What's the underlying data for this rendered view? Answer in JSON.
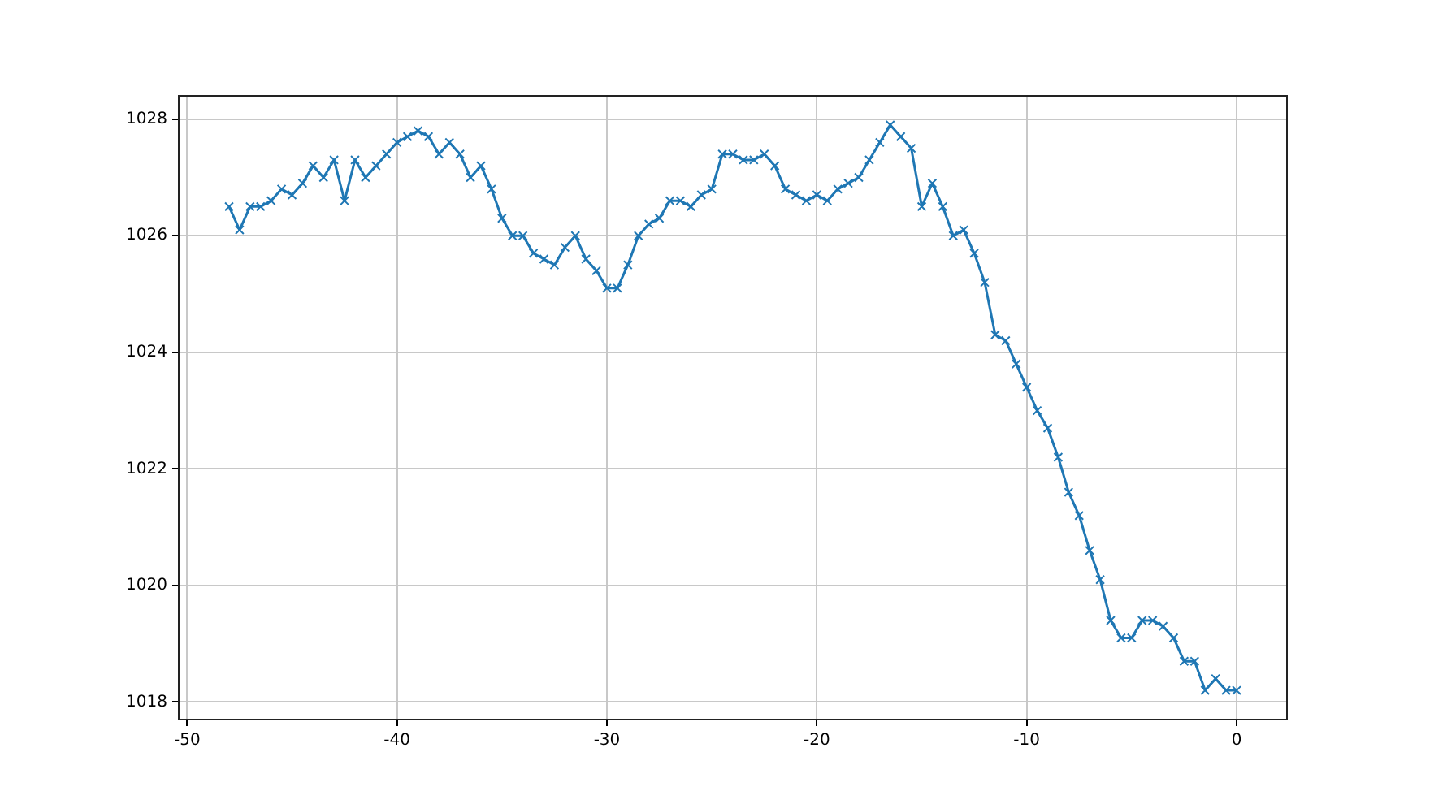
{
  "chart_data": {
    "type": "line",
    "marker": "cross",
    "grid": true,
    "color": "#1f77b4",
    "x": [
      -48,
      -47.5,
      -47,
      -46.5,
      -46,
      -45.5,
      -45,
      -44.5,
      -44,
      -43.5,
      -43,
      -42.5,
      -42,
      -41.5,
      -41,
      -40.5,
      -40,
      -39.5,
      -39,
      -38.5,
      -38,
      -37.5,
      -37,
      -36.5,
      -36,
      -35.5,
      -35,
      -34.5,
      -34,
      -33.5,
      -33,
      -32.5,
      -32,
      -31.5,
      -31,
      -30.5,
      -30,
      -29.5,
      -29,
      -28.5,
      -28,
      -27.5,
      -27,
      -26.5,
      -26,
      -25.5,
      -25,
      -24.5,
      -24,
      -23.5,
      -23,
      -22.5,
      -22,
      -21.5,
      -21,
      -20.5,
      -20,
      -19.5,
      -19,
      -18.5,
      -18,
      -17.5,
      -17,
      -16.5,
      -16,
      -15.5,
      -15,
      -14.5,
      -14,
      -13.5,
      -13,
      -12.5,
      -12,
      -11.5,
      -11,
      -10.5,
      -10,
      -9.5,
      -9,
      -8.5,
      -8,
      -7.5,
      -7,
      -6.5,
      -6,
      -5.5,
      -5,
      -4.5,
      -4,
      -3.5,
      -3,
      -2.5,
      -2,
      -1.5,
      -1,
      -0.5,
      0
    ],
    "values": [
      1026.5,
      1026.1,
      1026.5,
      1026.5,
      1026.6,
      1026.8,
      1026.7,
      1026.9,
      1027.2,
      1027.0,
      1027.3,
      1026.6,
      1027.3,
      1027.0,
      1027.2,
      1027.4,
      1027.6,
      1027.7,
      1027.8,
      1027.7,
      1027.4,
      1027.6,
      1027.4,
      1027.0,
      1027.2,
      1026.8,
      1026.3,
      1026.0,
      1026.0,
      1025.7,
      1025.6,
      1025.5,
      1025.8,
      1026.0,
      1025.6,
      1025.4,
      1025.1,
      1025.1,
      1025.5,
      1026.0,
      1026.2,
      1026.3,
      1026.6,
      1026.6,
      1026.5,
      1026.7,
      1026.8,
      1027.4,
      1027.4,
      1027.3,
      1027.3,
      1027.4,
      1027.2,
      1026.8,
      1026.7,
      1026.6,
      1026.7,
      1026.6,
      1026.8,
      1026.9,
      1027.0,
      1027.3,
      1027.6,
      1027.9,
      1027.7,
      1027.5,
      1026.5,
      1026.9,
      1026.5,
      1026.0,
      1026.1,
      1025.7,
      1025.2,
      1024.3,
      1024.2,
      1023.8,
      1023.4,
      1023.0,
      1022.7,
      1022.2,
      1021.6,
      1021.2,
      1020.6,
      1020.1,
      1019.4,
      1019.1,
      1019.1,
      1019.4,
      1019.4,
      1019.3,
      1019.1,
      1018.7,
      1018.7,
      1018.2,
      1018.4,
      1018.2,
      1018.2
    ],
    "xlim": [
      -50.4,
      2.4
    ],
    "ylim": [
      1017.7,
      1028.4
    ],
    "xticks": [
      -50,
      -40,
      -30,
      -20,
      -10,
      0
    ],
    "yticks": [
      1018,
      1020,
      1022,
      1024,
      1026,
      1028
    ]
  }
}
